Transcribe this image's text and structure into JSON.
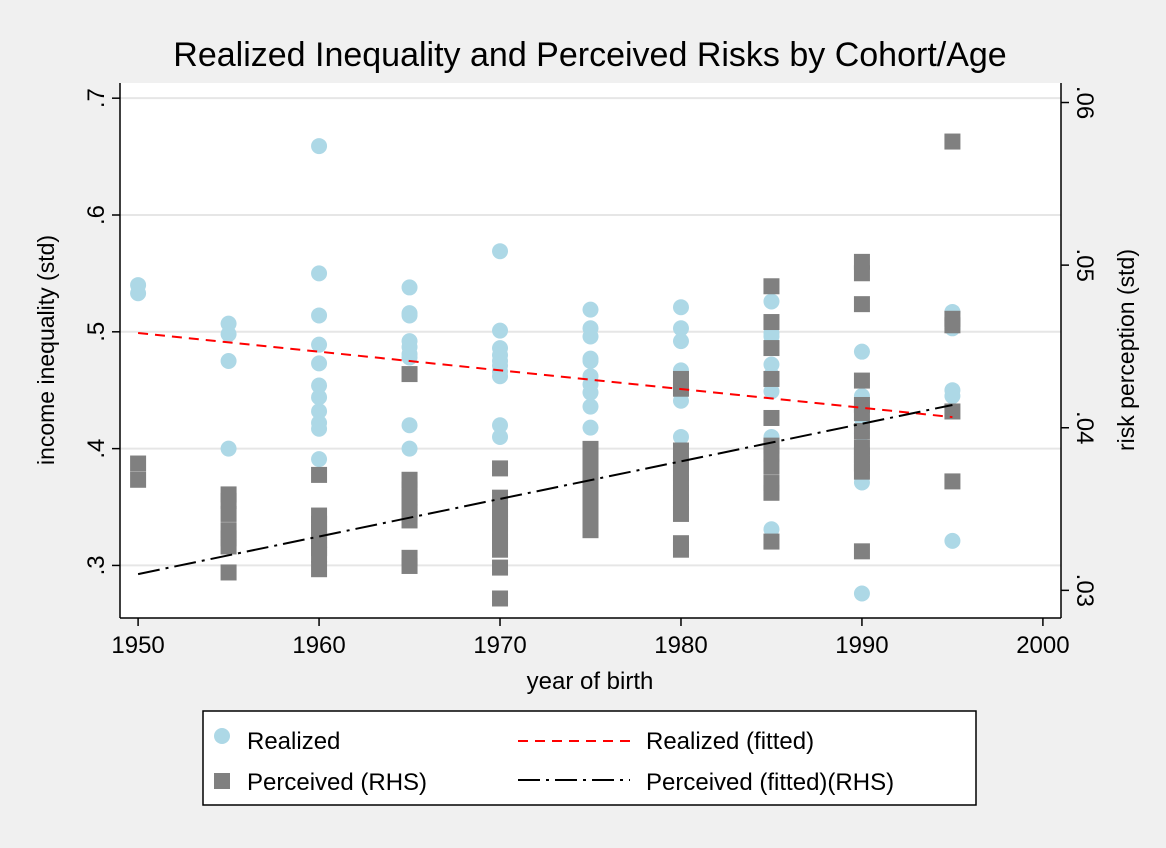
{
  "chart_data": {
    "type": "scatter",
    "title": "Realized Inequality and Perceived Risks by Cohort/Age",
    "xlabel": "year of birth",
    "ylabel": "income inequality (std)",
    "y2label": "risk perception (std)",
    "xlim": [
      1949,
      2001
    ],
    "ylim": [
      0.255,
      0.713
    ],
    "y2lim": [
      0.0283,
      0.0612
    ],
    "xticks": [
      1950,
      1960,
      1970,
      1980,
      1990,
      2000
    ],
    "yticks": [
      0.3,
      0.4,
      0.5,
      0.6,
      0.7
    ],
    "ytick_labels": [
      ".3",
      ".4",
      ".5",
      ".6",
      ".7"
    ],
    "y2ticks": [
      0.03,
      0.04,
      0.05,
      0.06
    ],
    "y2tick_labels": [
      ".03",
      ".04",
      ".05",
      ".06"
    ],
    "grid": true,
    "legend_position": "bottom",
    "series": [
      {
        "name": "Realized",
        "kind": "scatter",
        "axis": "left",
        "marker": "circle",
        "color": "#add8e6",
        "points": [
          [
            1950,
            0.54
          ],
          [
            1950,
            0.533
          ],
          [
            1955,
            0.507
          ],
          [
            1955,
            0.498
          ],
          [
            1955,
            0.475
          ],
          [
            1955,
            0.4
          ],
          [
            1960,
            0.659
          ],
          [
            1960,
            0.55
          ],
          [
            1960,
            0.514
          ],
          [
            1960,
            0.489
          ],
          [
            1960,
            0.473
          ],
          [
            1960,
            0.454
          ],
          [
            1960,
            0.444
          ],
          [
            1960,
            0.432
          ],
          [
            1960,
            0.422
          ],
          [
            1960,
            0.417
          ],
          [
            1960,
            0.391
          ],
          [
            1965,
            0.538
          ],
          [
            1965,
            0.516
          ],
          [
            1965,
            0.514
          ],
          [
            1965,
            0.492
          ],
          [
            1965,
            0.487
          ],
          [
            1965,
            0.481
          ],
          [
            1965,
            0.478
          ],
          [
            1965,
            0.42
          ],
          [
            1965,
            0.4
          ],
          [
            1970,
            0.569
          ],
          [
            1970,
            0.501
          ],
          [
            1970,
            0.486
          ],
          [
            1970,
            0.48
          ],
          [
            1970,
            0.475
          ],
          [
            1970,
            0.471
          ],
          [
            1970,
            0.466
          ],
          [
            1970,
            0.462
          ],
          [
            1970,
            0.42
          ],
          [
            1970,
            0.41
          ],
          [
            1975,
            0.519
          ],
          [
            1975,
            0.503
          ],
          [
            1975,
            0.496
          ],
          [
            1975,
            0.477
          ],
          [
            1975,
            0.475
          ],
          [
            1975,
            0.462
          ],
          [
            1975,
            0.455
          ],
          [
            1975,
            0.448
          ],
          [
            1975,
            0.436
          ],
          [
            1975,
            0.418
          ],
          [
            1980,
            0.521
          ],
          [
            1980,
            0.503
          ],
          [
            1980,
            0.492
          ],
          [
            1980,
            0.467
          ],
          [
            1980,
            0.455
          ],
          [
            1980,
            0.441
          ],
          [
            1980,
            0.41
          ],
          [
            1985,
            0.526
          ],
          [
            1985,
            0.499
          ],
          [
            1985,
            0.496
          ],
          [
            1985,
            0.472
          ],
          [
            1985,
            0.463
          ],
          [
            1985,
            0.456
          ],
          [
            1985,
            0.449
          ],
          [
            1985,
            0.41
          ],
          [
            1985,
            0.4
          ],
          [
            1985,
            0.331
          ],
          [
            1990,
            0.483
          ],
          [
            1990,
            0.445
          ],
          [
            1990,
            0.439
          ],
          [
            1990,
            0.433
          ],
          [
            1990,
            0.426
          ],
          [
            1990,
            0.419
          ],
          [
            1990,
            0.413
          ],
          [
            1990,
            0.4
          ],
          [
            1990,
            0.371
          ],
          [
            1990,
            0.276
          ],
          [
            1995,
            0.517
          ],
          [
            1995,
            0.51
          ],
          [
            1995,
            0.503
          ],
          [
            1995,
            0.45
          ],
          [
            1995,
            0.445
          ],
          [
            1995,
            0.321
          ]
        ]
      },
      {
        "name": "Perceived (RHS)",
        "kind": "scatter",
        "axis": "right",
        "marker": "square",
        "color": "#808080",
        "points": [
          [
            1950,
            0.0378
          ],
          [
            1950,
            0.0368
          ],
          [
            1955,
            0.0359
          ],
          [
            1955,
            0.0355
          ],
          [
            1955,
            0.0347
          ],
          [
            1955,
            0.0337
          ],
          [
            1955,
            0.0332
          ],
          [
            1955,
            0.0327
          ],
          [
            1955,
            0.0311
          ],
          [
            1960,
            0.0371
          ],
          [
            1960,
            0.0346
          ],
          [
            1960,
            0.0341
          ],
          [
            1960,
            0.0336
          ],
          [
            1960,
            0.0331
          ],
          [
            1960,
            0.0326
          ],
          [
            1960,
            0.0322
          ],
          [
            1960,
            0.0313
          ],
          [
            1965,
            0.0433
          ],
          [
            1965,
            0.0368
          ],
          [
            1965,
            0.0362
          ],
          [
            1965,
            0.0357
          ],
          [
            1965,
            0.0352
          ],
          [
            1965,
            0.0348
          ],
          [
            1965,
            0.0343
          ],
          [
            1965,
            0.032
          ],
          [
            1965,
            0.0315
          ],
          [
            1970,
            0.0375
          ],
          [
            1970,
            0.0357
          ],
          [
            1970,
            0.035
          ],
          [
            1970,
            0.0345
          ],
          [
            1970,
            0.0341
          ],
          [
            1970,
            0.0335
          ],
          [
            1970,
            0.033
          ],
          [
            1970,
            0.0325
          ],
          [
            1970,
            0.0314
          ],
          [
            1970,
            0.0295
          ],
          [
            1975,
            0.0387
          ],
          [
            1975,
            0.0382
          ],
          [
            1975,
            0.0376
          ],
          [
            1975,
            0.0371
          ],
          [
            1975,
            0.0366
          ],
          [
            1975,
            0.0357
          ],
          [
            1975,
            0.0352
          ],
          [
            1975,
            0.0347
          ],
          [
            1975,
            0.0342
          ],
          [
            1975,
            0.0337
          ],
          [
            1980,
            0.043
          ],
          [
            1980,
            0.0424
          ],
          [
            1980,
            0.0386
          ],
          [
            1980,
            0.0378
          ],
          [
            1980,
            0.0372
          ],
          [
            1980,
            0.0366
          ],
          [
            1980,
            0.036
          ],
          [
            1980,
            0.0354
          ],
          [
            1980,
            0.0347
          ],
          [
            1980,
            0.0329
          ],
          [
            1980,
            0.0325
          ],
          [
            1985,
            0.0487
          ],
          [
            1985,
            0.0465
          ],
          [
            1985,
            0.0449
          ],
          [
            1985,
            0.043
          ],
          [
            1985,
            0.0406
          ],
          [
            1985,
            0.0389
          ],
          [
            1985,
            0.0384
          ],
          [
            1985,
            0.0376
          ],
          [
            1985,
            0.0366
          ],
          [
            1985,
            0.036
          ],
          [
            1985,
            0.033
          ],
          [
            1990,
            0.0502
          ],
          [
            1990,
            0.0495
          ],
          [
            1990,
            0.0476
          ],
          [
            1990,
            0.0429
          ],
          [
            1990,
            0.0414
          ],
          [
            1990,
            0.0409
          ],
          [
            1990,
            0.0398
          ],
          [
            1990,
            0.0388
          ],
          [
            1990,
            0.0383
          ],
          [
            1990,
            0.0378
          ],
          [
            1990,
            0.0373
          ],
          [
            1990,
            0.0324
          ],
          [
            1995,
            0.0576
          ],
          [
            1995,
            0.0467
          ],
          [
            1995,
            0.0463
          ],
          [
            1995,
            0.041
          ],
          [
            1995,
            0.0367
          ]
        ]
      },
      {
        "name": "Realized (fitted)",
        "kind": "line",
        "axis": "left",
        "color": "#ff0000",
        "dash": "dashed",
        "points": [
          [
            1950,
            0.499
          ],
          [
            1995,
            0.427
          ]
        ]
      },
      {
        "name": "Perceived (fitted)(RHS)",
        "kind": "line",
        "axis": "right",
        "color": "#000000",
        "dash": "dashdot",
        "points": [
          [
            1950,
            0.031
          ],
          [
            1995,
            0.0414
          ]
        ]
      }
    ]
  }
}
